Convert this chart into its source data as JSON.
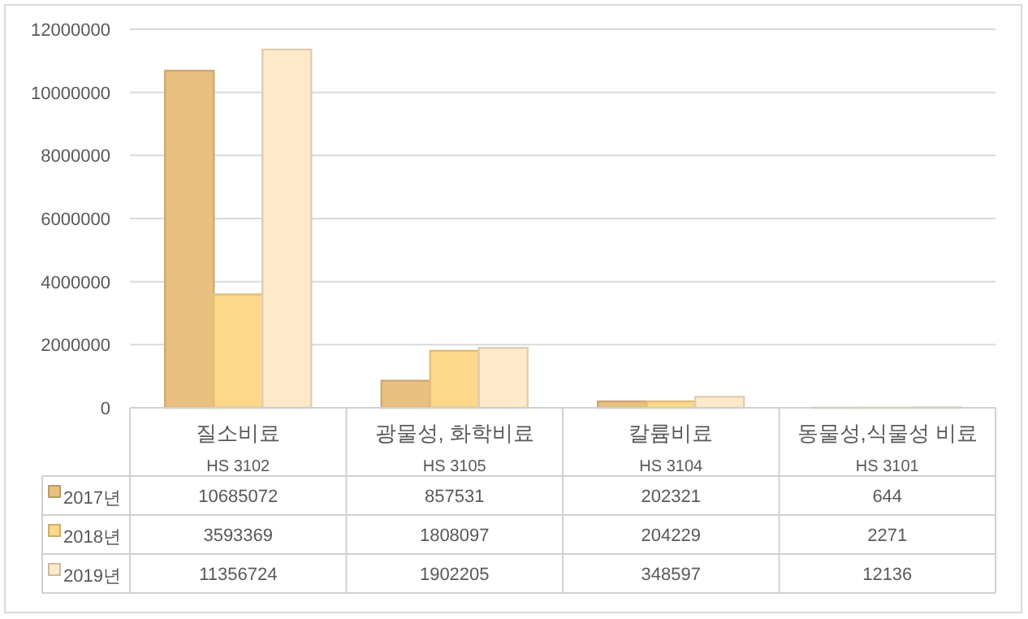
{
  "chart_data": {
    "type": "bar",
    "categories": [
      "질소비료\nHS 3102",
      "광물성, 화학비료\nHS 3105",
      "칼륨비료\nHS 3104",
      "동물성,식물성 비료\nHS 3101"
    ],
    "series": [
      {
        "name": "2017년",
        "color": "#e9c080",
        "values": [
          10685072,
          857531,
          202321,
          644
        ]
      },
      {
        "name": "2018년",
        "color": "#fed88a",
        "values": [
          3593369,
          1808097,
          204229,
          2271
        ]
      },
      {
        "name": "2019년",
        "color": "#ffe9cb",
        "values": [
          11356724,
          1902205,
          348597,
          12136
        ]
      }
    ],
    "ylim": [
      0,
      12000000
    ],
    "yticks": [
      0,
      2000000,
      4000000,
      6000000,
      8000000,
      10000000,
      12000000
    ],
    "grid": "y",
    "data_labels": true,
    "legend": "bottom left"
  }
}
